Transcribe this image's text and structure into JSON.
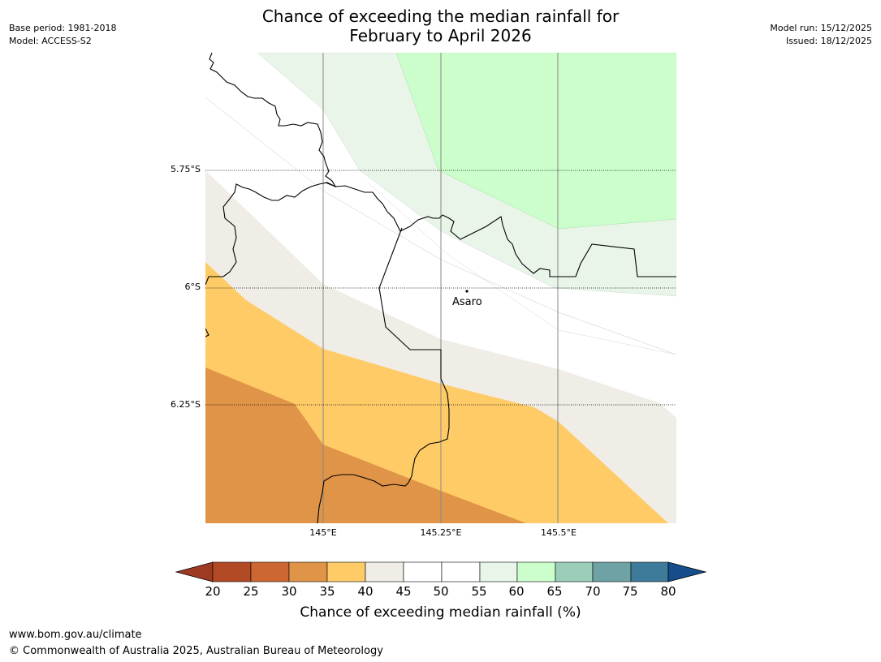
{
  "title_line1": "Chance of exceeding the median rainfall for",
  "title_line2": "February to April 2026",
  "base_period": "Base period: 1981-2018",
  "model": "Model: ACCESS-S2",
  "model_run": "Model run: 15/12/2025",
  "issued": "Issued: 18/12/2025",
  "map": {
    "lat_labels": [
      "5.75°S",
      "6°S",
      "6.25°S"
    ],
    "lon_labels": [
      "145°E",
      "145.25°E",
      "145.5°E"
    ],
    "place": "Asaro"
  },
  "colorbar": {
    "ticks": [
      "20",
      "25",
      "30",
      "35",
      "40",
      "45",
      "50",
      "55",
      "60",
      "65",
      "70",
      "75",
      "80"
    ],
    "colors": [
      "#9e3a22",
      "#b34a26",
      "#cc6633",
      "#e09447",
      "#fecb67",
      "#f0ece6",
      "#ffffff",
      "#ffffff",
      "#e9f5e8",
      "#ccfecc",
      "#9bceb8",
      "#6ea2a5",
      "#3e7a9a",
      "#164d8a"
    ],
    "label": "Chance of exceeding median rainfall (%)"
  },
  "footer_url": "www.bom.gov.au/climate",
  "footer_copyright": "© Commonwealth of Australia 2025, Australian Bureau of Meteorology"
}
